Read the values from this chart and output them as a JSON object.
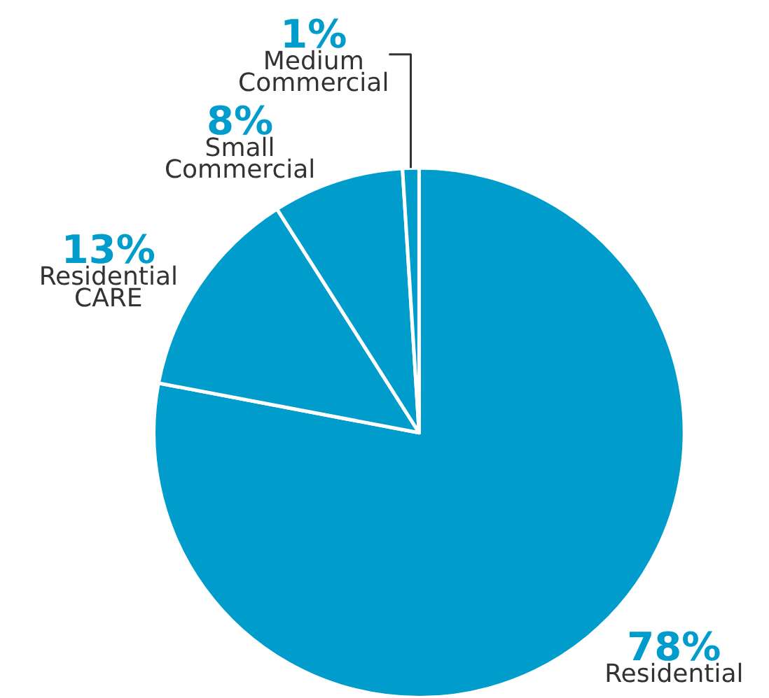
{
  "chart_data": {
    "type": "pie",
    "categories": [
      "Residential",
      "Residential CARE",
      "Small Commercial",
      "Medium Commercial"
    ],
    "values": [
      78,
      13,
      8,
      1
    ],
    "value_labels": [
      "78%",
      "13%",
      "8%",
      "1%"
    ],
    "colors": [
      "#009ccc",
      "#009ccc",
      "#009ccc",
      "#009ccc"
    ],
    "legend": false
  }
}
